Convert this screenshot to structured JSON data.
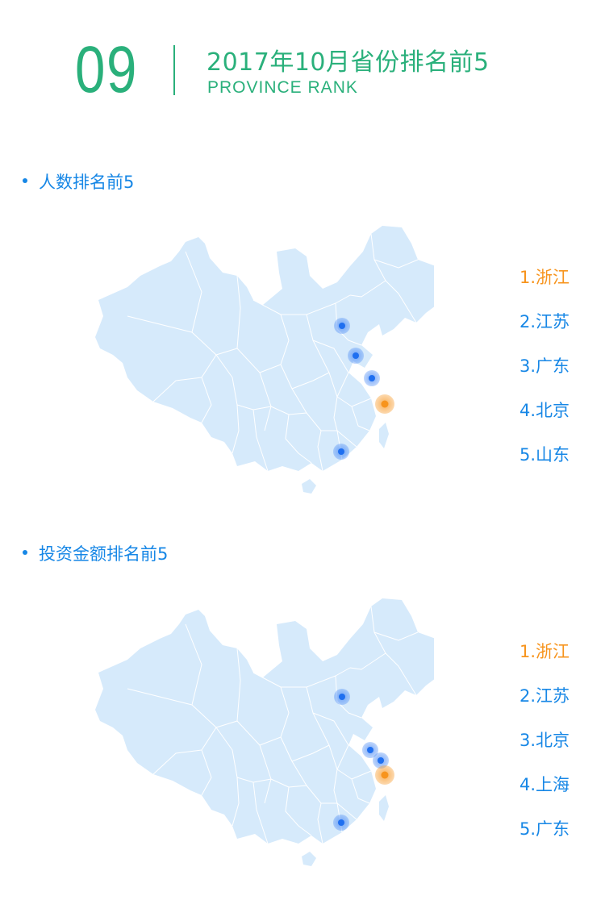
{
  "header": {
    "number": "09",
    "title": "2017年10月省份排名前5",
    "subtitle": "PROVINCE RANK"
  },
  "sections": [
    {
      "title": "人数排名前5",
      "rankings": [
        "1.浙江",
        "2.江苏",
        "3.广东",
        "4.北京",
        "5.山东"
      ]
    },
    {
      "title": "投资金额排名前5",
      "rankings": [
        "1.浙江",
        "2.江苏",
        "3.北京",
        "4.上海",
        "5.广东"
      ]
    }
  ],
  "colors": {
    "accent_green": "#2ab07b",
    "primary_blue": "#1787e6",
    "highlight_orange": "#f7941d",
    "map_fill": "#d6eafb"
  }
}
